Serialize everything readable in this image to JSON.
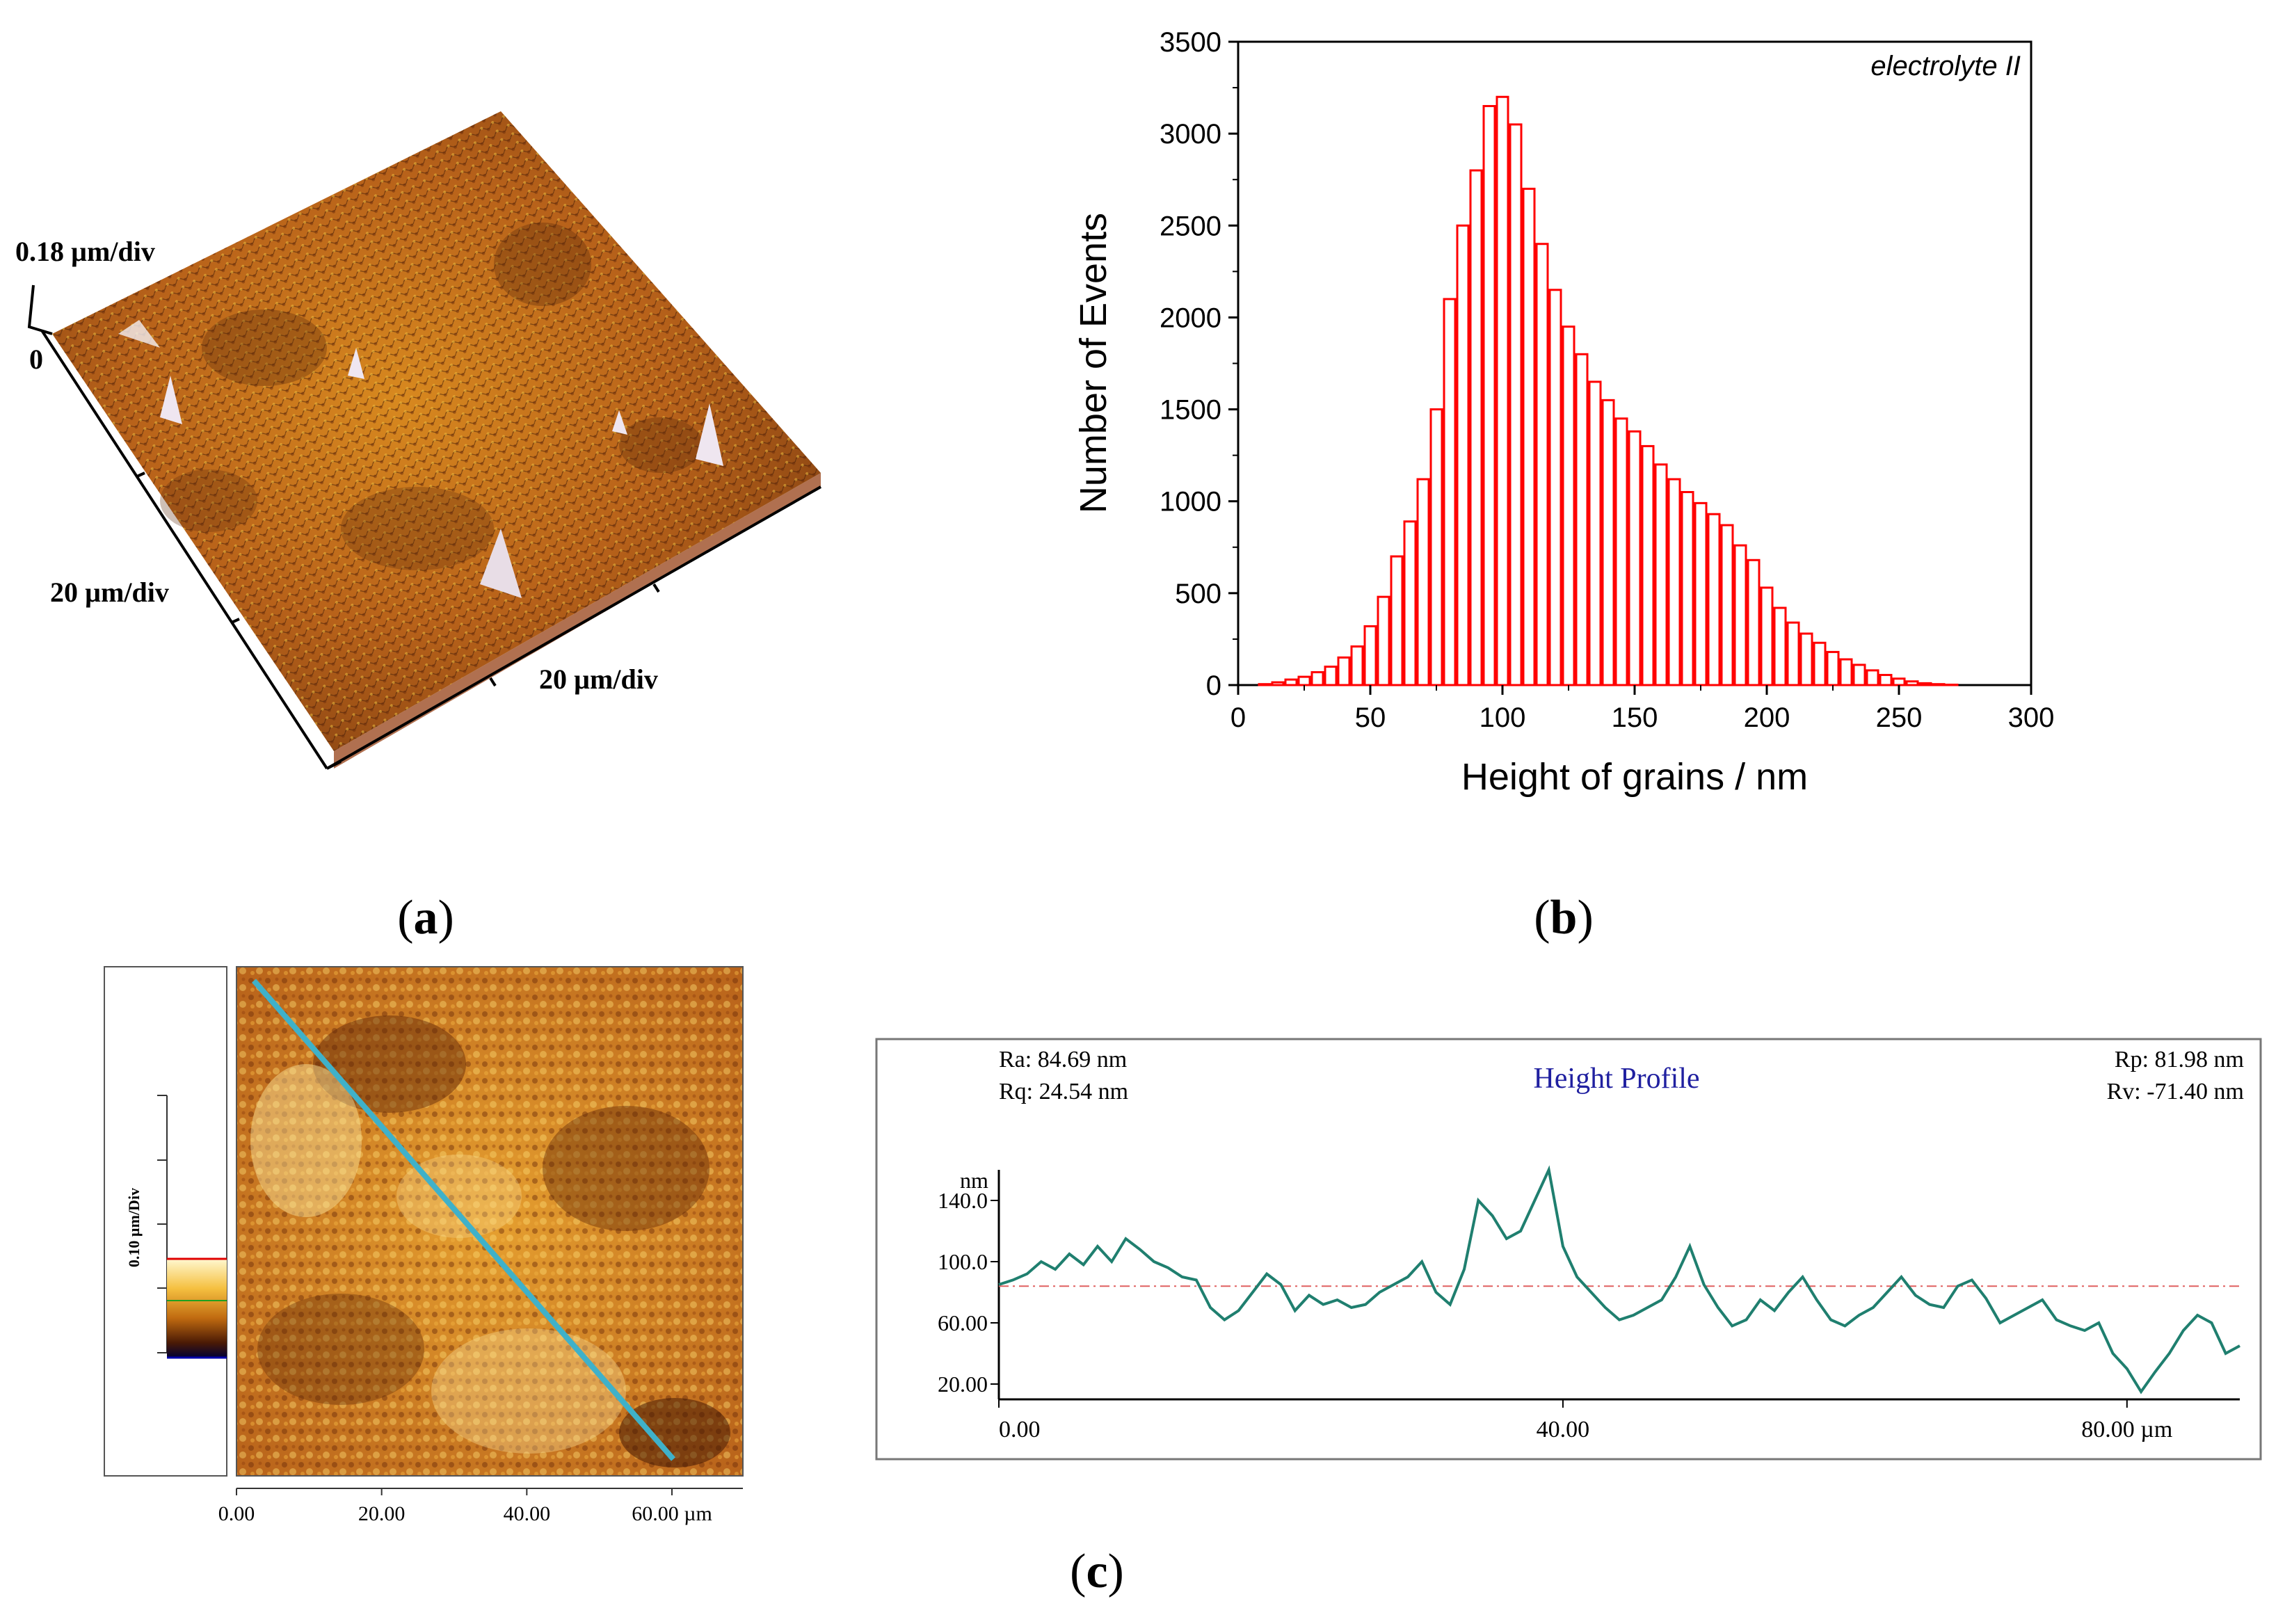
{
  "panels": {
    "a": {
      "label": "a"
    },
    "b": {
      "label": "b"
    },
    "c": {
      "label": "c"
    }
  },
  "afm3d": {
    "z_scale": "0.18 µm/div",
    "z_zero": "0",
    "x_scale_left": "20 µm/div",
    "x_scale_right": "20 µm/div",
    "surface_color": "#b8621a"
  },
  "afm2d": {
    "colorbar_label": "0.10 µm/Div",
    "axis_ticks": [
      "0.00",
      "20.00",
      "40.00",
      "60.00 µm"
    ],
    "axis_tick_values": [
      0,
      20,
      40,
      60
    ],
    "line_color": "#3fb1c9"
  },
  "chart_data": [
    {
      "type": "bar",
      "panel": "b",
      "title": "",
      "annotation": "electrolyte II",
      "xlabel": "Height of grains / nm",
      "ylabel": "Number of Events",
      "xlim": [
        0,
        300
      ],
      "ylim": [
        0,
        3500
      ],
      "xticks": [
        0,
        50,
        100,
        150,
        200,
        250,
        300
      ],
      "yticks": [
        0,
        500,
        1000,
        1500,
        2000,
        2500,
        3000,
        3500
      ],
      "bar_color": "#ff0000",
      "bin_width": 5,
      "x": [
        10,
        15,
        20,
        25,
        30,
        35,
        40,
        45,
        50,
        55,
        60,
        65,
        70,
        75,
        80,
        85,
        90,
        95,
        100,
        105,
        110,
        115,
        120,
        125,
        130,
        135,
        140,
        145,
        150,
        155,
        160,
        165,
        170,
        175,
        180,
        185,
        190,
        195,
        200,
        205,
        210,
        215,
        220,
        225,
        230,
        235,
        240,
        245,
        250,
        255,
        260,
        265,
        270,
        275
      ],
      "values": [
        5,
        15,
        30,
        45,
        70,
        100,
        150,
        210,
        320,
        480,
        700,
        890,
        1120,
        1500,
        2100,
        2500,
        2800,
        3150,
        3200,
        3050,
        2700,
        2400,
        2150,
        1950,
        1800,
        1650,
        1550,
        1450,
        1380,
        1300,
        1200,
        1120,
        1050,
        990,
        930,
        870,
        760,
        680,
        530,
        420,
        340,
        280,
        230,
        180,
        140,
        110,
        80,
        55,
        35,
        20,
        10,
        5,
        2,
        0
      ]
    },
    {
      "type": "line",
      "panel": "c",
      "title": "Height Profile",
      "stats": {
        "ra": "Ra: 84.69 nm",
        "rq": "Rq: 24.54 nm",
        "rp": "Rp: 81.98 nm",
        "rv": "Rv: -71.40 nm"
      },
      "ylabel": "nm",
      "xlabel": "µm",
      "xlim": [
        0,
        88
      ],
      "ylim": [
        10,
        160
      ],
      "yticks": [
        20,
        60,
        100,
        140
      ],
      "ytick_labels": [
        "20.00",
        "60.00",
        "100.0",
        "140.0"
      ],
      "xticks": [
        0,
        40,
        80
      ],
      "xtick_labels": [
        "0.00",
        "40.00",
        "80.00 µm"
      ],
      "reference_line": 84,
      "line_color": "#1f7f6f",
      "ref_color": "#e06060",
      "x": [
        0,
        1,
        2,
        3,
        4,
        5,
        6,
        7,
        8,
        9,
        10,
        11,
        12,
        13,
        14,
        15,
        16,
        17,
        18,
        19,
        20,
        21,
        22,
        23,
        24,
        25,
        26,
        27,
        28,
        29,
        30,
        31,
        32,
        33,
        34,
        35,
        36,
        37,
        38,
        39,
        40,
        41,
        42,
        43,
        44,
        45,
        46,
        47,
        48,
        49,
        50,
        51,
        52,
        53,
        54,
        55,
        56,
        57,
        58,
        59,
        60,
        61,
        62,
        63,
        64,
        65,
        66,
        67,
        68,
        69,
        70,
        71,
        72,
        73,
        74,
        75,
        76,
        77,
        78,
        79,
        80,
        81,
        82,
        83,
        84,
        85,
        86,
        87,
        88
      ],
      "values": [
        85,
        88,
        92,
        100,
        95,
        105,
        98,
        110,
        100,
        115,
        108,
        100,
        96,
        90,
        88,
        70,
        62,
        68,
        80,
        92,
        85,
        68,
        78,
        72,
        75,
        70,
        72,
        80,
        85,
        90,
        100,
        80,
        72,
        95,
        140,
        130,
        115,
        120,
        140,
        160,
        110,
        90,
        80,
        70,
        62,
        65,
        70,
        75,
        90,
        110,
        85,
        70,
        58,
        62,
        75,
        68,
        80,
        90,
        75,
        62,
        58,
        65,
        70,
        80,
        90,
        78,
        72,
        70,
        84,
        88,
        76,
        60,
        65,
        70,
        75,
        62,
        58,
        55,
        60,
        40,
        30,
        15,
        28,
        40,
        55,
        65,
        60,
        40,
        45
      ]
    }
  ]
}
